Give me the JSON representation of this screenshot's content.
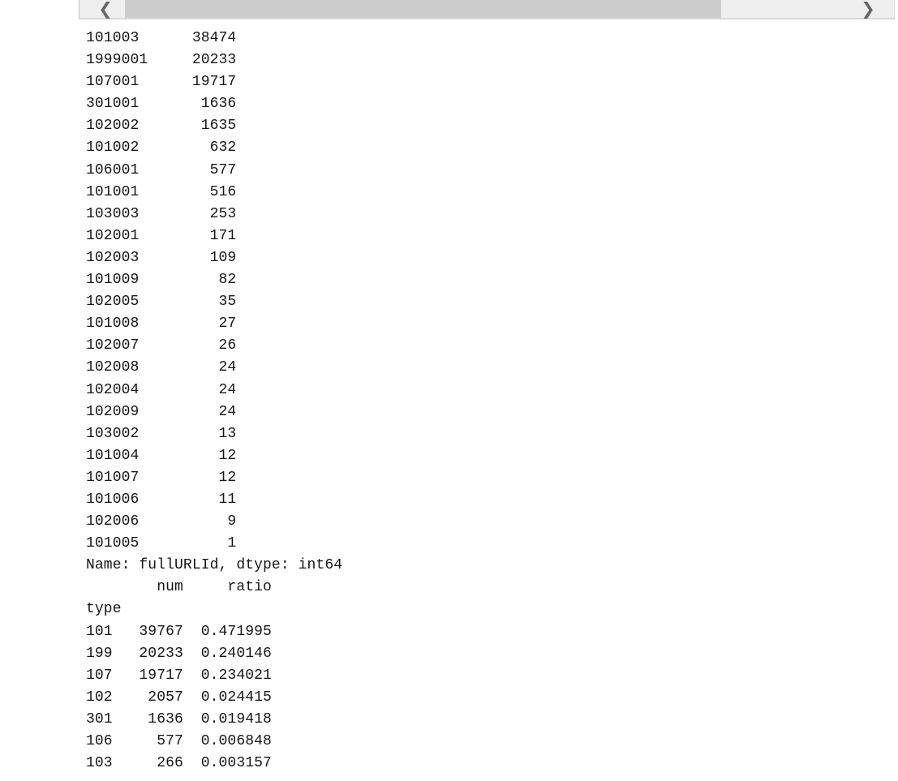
{
  "colors": {
    "scrollbar_track": "#efefef",
    "scrollbar_thumb": "#cccccc",
    "scrollbar_arrow": "#666666",
    "text": "#161616",
    "background": "#ffffff"
  },
  "scrollbar": {
    "left_arrow_icon": "❮",
    "right_arrow_icon": "❯"
  },
  "console": {
    "value_counts": {
      "series_name": "fullURLId",
      "rows": [
        {
          "id": "101003",
          "count": "38474"
        },
        {
          "id": "1999001",
          "count": "20233"
        },
        {
          "id": "107001",
          "count": "19717"
        },
        {
          "id": "301001",
          "count": "1636"
        },
        {
          "id": "102002",
          "count": "1635"
        },
        {
          "id": "101002",
          "count": "632"
        },
        {
          "id": "106001",
          "count": "577"
        },
        {
          "id": "101001",
          "count": "516"
        },
        {
          "id": "103003",
          "count": "253"
        },
        {
          "id": "102001",
          "count": "171"
        },
        {
          "id": "102003",
          "count": "109"
        },
        {
          "id": "101009",
          "count": "82"
        },
        {
          "id": "102005",
          "count": "35"
        },
        {
          "id": "101008",
          "count": "27"
        },
        {
          "id": "102007",
          "count": "26"
        },
        {
          "id": "102008",
          "count": "24"
        },
        {
          "id": "102004",
          "count": "24"
        },
        {
          "id": "102009",
          "count": "24"
        },
        {
          "id": "103002",
          "count": "13"
        },
        {
          "id": "101004",
          "count": "12"
        },
        {
          "id": "101007",
          "count": "12"
        },
        {
          "id": "101006",
          "count": "11"
        },
        {
          "id": "102006",
          "count": "9"
        },
        {
          "id": "101005",
          "count": "1"
        }
      ],
      "footer": "Name: fullURLId, dtype: int64"
    },
    "type_table": {
      "index_name": "type",
      "columns": [
        "num",
        "ratio"
      ],
      "rows": [
        {
          "type": "101",
          "num": "39767",
          "ratio": "0.471995"
        },
        {
          "type": "199",
          "num": "20233",
          "ratio": "0.240146"
        },
        {
          "type": "107",
          "num": "19717",
          "ratio": "0.234021"
        },
        {
          "type": "102",
          "num": "2057",
          "ratio": "0.024415"
        },
        {
          "type": "301",
          "num": "1636",
          "ratio": "0.019418"
        },
        {
          "type": "106",
          "num": "577",
          "ratio": "0.006848"
        },
        {
          "type": "103",
          "num": "266",
          "ratio": "0.003157"
        }
      ]
    }
  }
}
